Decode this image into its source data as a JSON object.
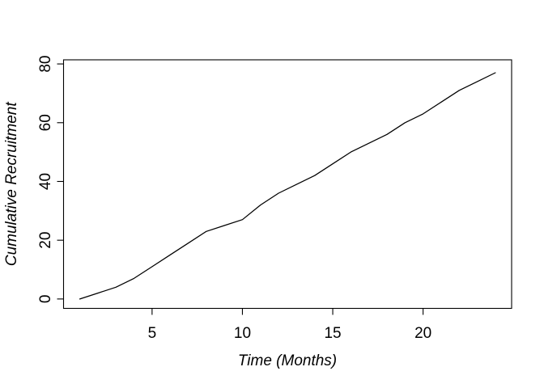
{
  "chart_data": {
    "type": "line",
    "title": "",
    "xlabel": "Time (Months)",
    "ylabel": "Cumulative Recruitment",
    "x": [
      1,
      2,
      3,
      4,
      5,
      6,
      7,
      8,
      9,
      10,
      11,
      12,
      13,
      14,
      15,
      16,
      17,
      18,
      19,
      20,
      21,
      22,
      23,
      24
    ],
    "y": [
      0,
      2,
      4,
      7,
      11,
      15,
      19,
      23,
      25,
      27,
      32,
      36,
      39,
      42,
      46,
      50,
      53,
      56,
      60,
      63,
      67,
      71,
      74,
      77
    ],
    "xticks": [
      5,
      10,
      15,
      20
    ],
    "yticks": [
      0,
      20,
      40,
      60,
      80
    ],
    "xlim": [
      0.1,
      24.9
    ],
    "ylim": [
      -3.2,
      81.4
    ],
    "grid": false,
    "legend": null,
    "line_color": "#000000",
    "axis_color": "#000000",
    "background_color": "#ffffff"
  }
}
